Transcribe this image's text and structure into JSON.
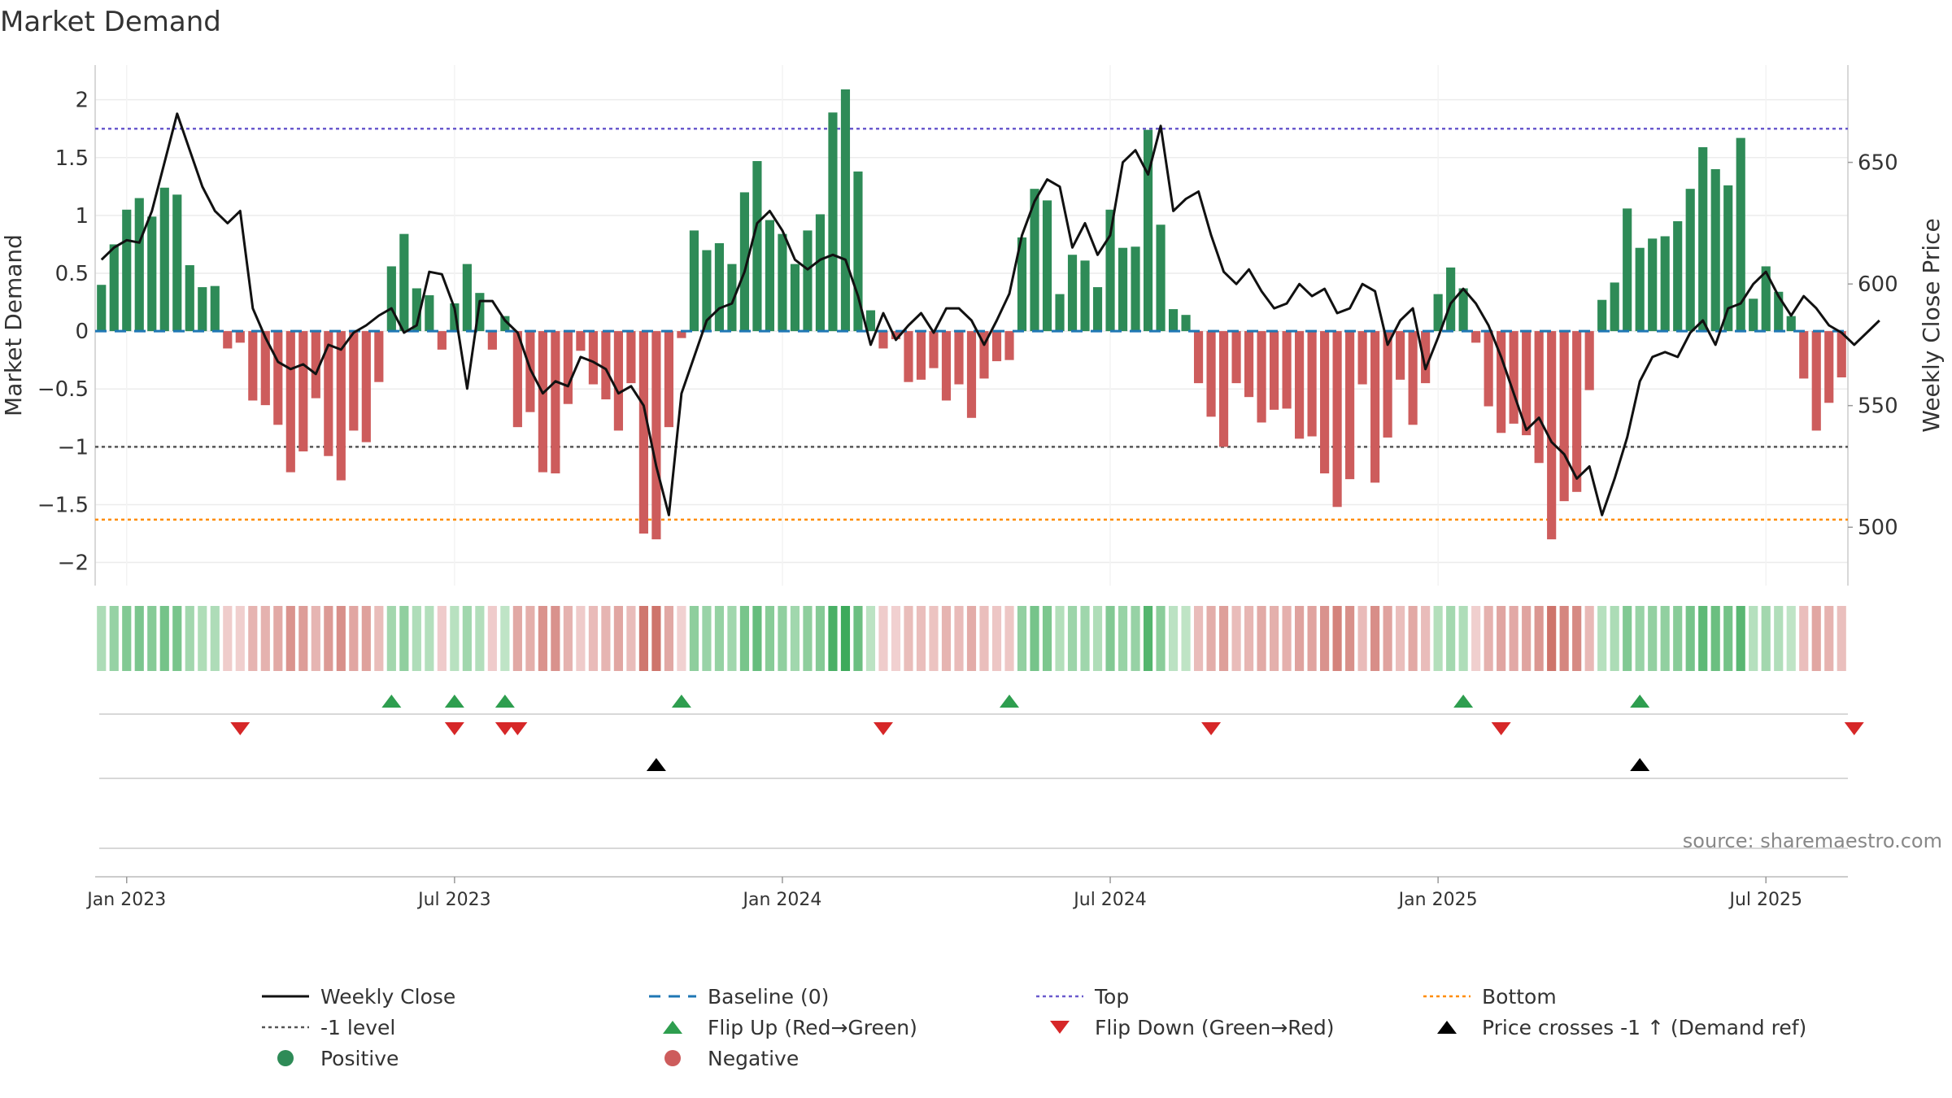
{
  "chart_data": {
    "type": "bar",
    "title": "Market Demand",
    "ylabel": "Market Demand",
    "y2label": "Weekly Close Price",
    "ylim": [
      -2.2,
      2.3
    ],
    "y2lim": [
      476,
      690
    ],
    "yticks": [
      {
        "v": 2,
        "label": "2"
      },
      {
        "v": 1.5,
        "label": "1.5"
      },
      {
        "v": 1,
        "label": "1"
      },
      {
        "v": 0.5,
        "label": "0.5"
      },
      {
        "v": 0,
        "label": "0"
      },
      {
        "v": -0.5,
        "label": "−0.5"
      },
      {
        "v": -1,
        "label": "−1"
      },
      {
        "v": -1.5,
        "label": "−1.5"
      },
      {
        "v": -2,
        "label": "−2"
      }
    ],
    "y2ticks": [
      {
        "v": 650,
        "label": "650"
      },
      {
        "v": 600,
        "label": "600"
      },
      {
        "v": 550,
        "label": "550"
      },
      {
        "v": 500,
        "label": "500"
      }
    ],
    "xticks": [
      {
        "i": 2,
        "label": "Jan 2023"
      },
      {
        "i": 28,
        "label": "Jul 2023"
      },
      {
        "i": 54,
        "label": "Jan 2024"
      },
      {
        "i": 80,
        "label": "Jul 2024"
      },
      {
        "i": 106,
        "label": "Jan 2025"
      },
      {
        "i": 132,
        "label": "Jul 2025"
      }
    ],
    "reference_lines": {
      "baseline": 0,
      "minus_one": -1,
      "top": 1.75,
      "bottom": -1.63
    },
    "demand": [
      0.4,
      0.75,
      1.05,
      1.15,
      0.99,
      1.24,
      1.18,
      0.57,
      0.38,
      0.39,
      -0.15,
      -0.1,
      -0.6,
      -0.64,
      -0.81,
      -1.22,
      -1.04,
      -0.58,
      -1.08,
      -1.29,
      -0.86,
      -0.96,
      -0.44,
      0.56,
      0.84,
      0.37,
      0.31,
      -0.16,
      0.24,
      0.58,
      0.33,
      -0.16,
      0.13,
      -0.83,
      -0.7,
      -1.22,
      -1.23,
      -0.63,
      -0.17,
      -0.46,
      -0.59,
      -0.86,
      -0.45,
      -1.75,
      -1.8,
      -0.83,
      -0.06,
      0.87,
      0.7,
      0.76,
      0.58,
      1.2,
      1.47,
      0.96,
      0.84,
      0.58,
      0.87,
      1.01,
      1.89,
      2.09,
      1.38,
      0.18,
      -0.15,
      -0.07,
      -0.44,
      -0.42,
      -0.32,
      -0.6,
      -0.46,
      -0.75,
      -0.41,
      -0.26,
      -0.25,
      0.81,
      1.23,
      1.13,
      0.32,
      0.66,
      0.61,
      0.38,
      1.05,
      0.72,
      0.73,
      1.74,
      0.92,
      0.19,
      0.14,
      -0.45,
      -0.74,
      -1.0,
      -0.45,
      -0.57,
      -0.79,
      -0.68,
      -0.67,
      -0.93,
      -0.91,
      -1.23,
      -1.52,
      -1.28,
      -0.46,
      -1.31,
      -0.92,
      -0.42,
      -0.81,
      -0.45,
      0.32,
      0.55,
      0.37,
      -0.1,
      -0.65,
      -0.88,
      -0.8,
      -0.9,
      -1.14,
      -1.8,
      -1.47,
      -1.39,
      -0.51,
      0.27,
      0.42,
      1.06,
      0.72,
      0.8,
      0.82,
      0.95,
      1.23,
      1.59,
      1.4,
      1.26,
      1.67,
      0.28,
      0.56,
      0.34,
      0.13,
      -0.41,
      -0.86,
      -0.62,
      -0.4
    ],
    "weekly_close": [
      610,
      615,
      618,
      617,
      630,
      650,
      670,
      655,
      640,
      630,
      625,
      630,
      590,
      578,
      568,
      565,
      567,
      563,
      575,
      573,
      580,
      583,
      587,
      590,
      580,
      583,
      605,
      604,
      590,
      557,
      593,
      593,
      585,
      580,
      565,
      555,
      560,
      558,
      570,
      568,
      565,
      555,
      558,
      550,
      525,
      505,
      555,
      570,
      585,
      590,
      592,
      605,
      625,
      630,
      622,
      610,
      606,
      610,
      612,
      610,
      595,
      575,
      588,
      577,
      583,
      588,
      580,
      590,
      590,
      585,
      575,
      585,
      596,
      620,
      634,
      643,
      640,
      615,
      625,
      612,
      620,
      650,
      655,
      645,
      665,
      630,
      635,
      638,
      620,
      605,
      600,
      606,
      597,
      590,
      592,
      600,
      595,
      598,
      588,
      590,
      600,
      597,
      575,
      585,
      590,
      565,
      578,
      592,
      598,
      592,
      583,
      570,
      555,
      540,
      545,
      535,
      530,
      520,
      525,
      505,
      520,
      537,
      560,
      570,
      572,
      570,
      580,
      585,
      575,
      590,
      592,
      600,
      605,
      595,
      587,
      595,
      590,
      583,
      580,
      575,
      580,
      585
    ]
  },
  "strips": {
    "flip_up_idx": [
      23,
      28,
      32,
      46,
      72,
      108,
      122
    ],
    "flip_down_idx": [
      11,
      28,
      32,
      33,
      62,
      88,
      111,
      139
    ],
    "price_cross_idx": [
      44,
      122
    ]
  },
  "colors": {
    "positive": "#2e8b57",
    "negative": "#cd5c5c",
    "price": "#111111",
    "baseline": "#1f77b4",
    "top": "#6a5acd",
    "bottom": "#ff8c00",
    "minus_one": "#555555",
    "flip_up": "#2e9e4f",
    "flip_down": "#d62728"
  },
  "source_label": "source: sharemaestro.com",
  "legend": [
    {
      "key": "price",
      "label": "Weekly Close",
      "marker": "solid-line"
    },
    {
      "key": "baseline",
      "label": "Baseline (0)",
      "marker": "dash-line"
    },
    {
      "key": "top",
      "label": "Top",
      "marker": "dot-line"
    },
    {
      "key": "bottom",
      "label": "Bottom",
      "marker": "dot-line"
    },
    {
      "key": "minus_one",
      "label": "-1 level",
      "marker": "dot-line"
    },
    {
      "key": "flip_up",
      "label": "Flip Up (Red→Green)",
      "marker": "triangle-up"
    },
    {
      "key": "flip_down",
      "label": "Flip Down (Green→Red)",
      "marker": "triangle-down"
    },
    {
      "key": "price_cross",
      "label": "Price crosses -1 ↑ (Demand ref)",
      "marker": "triangle-up-black"
    },
    {
      "key": "positive",
      "label": "Positive",
      "marker": "circle"
    },
    {
      "key": "negative",
      "label": "Negative",
      "marker": "circle"
    }
  ]
}
